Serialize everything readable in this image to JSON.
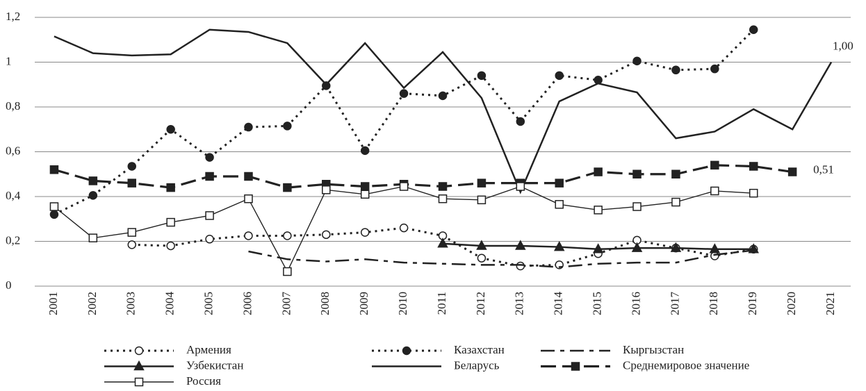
{
  "chart_data": {
    "type": "line",
    "categories": [
      "2001",
      "2002",
      "2003",
      "2004",
      "2005",
      "2006",
      "2007",
      "2008",
      "2009",
      "2010",
      "2011",
      "2012",
      "2013",
      "2014",
      "2015",
      "2016",
      "2017",
      "2018",
      "2019",
      "2020",
      "2021"
    ],
    "ylim": [
      0,
      1.2
    ],
    "yticks": [
      0,
      {
        "value": 0.2,
        "label": "0,2"
      },
      {
        "value": 0.4,
        "label": "0,4"
      },
      {
        "value": 0.6,
        "label": "0,6"
      },
      {
        "value": 0.8,
        "label": "0,8"
      },
      1,
      {
        "value": 1.2,
        "label": "1,2"
      }
    ],
    "grid": true,
    "legend": "bottom",
    "series": [
      {
        "name": "Армения",
        "color": "#222222",
        "dash": "dotted",
        "marker": "open-circle",
        "values": [
          null,
          null,
          0.185,
          0.18,
          0.21,
          0.225,
          0.225,
          0.23,
          0.24,
          0.26,
          0.225,
          0.125,
          0.09,
          0.095,
          0.145,
          0.205,
          0.17,
          0.135,
          0.165,
          null,
          null
        ]
      },
      {
        "name": "Казахстан",
        "color": "#222222",
        "dash": "dotted",
        "marker": "filled-circle",
        "values": [
          0.32,
          0.405,
          0.535,
          0.7,
          0.575,
          0.71,
          0.715,
          0.895,
          0.605,
          0.86,
          0.85,
          0.94,
          0.735,
          0.94,
          0.92,
          1.005,
          0.965,
          0.97,
          1.145,
          null,
          null
        ]
      },
      {
        "name": "Кыргызстан",
        "color": "#222222",
        "dash": "dash-dot",
        "marker": "none",
        "values": [
          null,
          null,
          null,
          null,
          null,
          0.155,
          0.12,
          0.11,
          0.12,
          0.105,
          0.1,
          0.095,
          0.095,
          0.085,
          0.1,
          0.105,
          0.105,
          0.14,
          0.16,
          null,
          null
        ]
      },
      {
        "name": "Узбекистан",
        "color": "#222222",
        "dash": "solid",
        "marker": "triangle",
        "values": [
          null,
          null,
          null,
          null,
          null,
          null,
          null,
          null,
          null,
          null,
          0.19,
          0.18,
          0.18,
          0.175,
          0.165,
          0.17,
          0.17,
          0.165,
          0.165,
          null,
          null
        ]
      },
      {
        "name": "Беларусь",
        "color": "#222222",
        "dash": "solid",
        "marker": "none",
        "values": [
          1.115,
          1.04,
          1.03,
          1.035,
          1.145,
          1.135,
          1.085,
          0.9,
          1.085,
          0.885,
          1.045,
          0.84,
          0.42,
          0.825,
          0.905,
          0.865,
          0.66,
          0.69,
          0.79,
          0.7,
          1.0
        ],
        "value_labels": [
          null,
          null,
          null,
          null,
          null,
          null,
          null,
          null,
          null,
          null,
          null,
          null,
          null,
          null,
          null,
          null,
          null,
          null,
          null,
          null,
          "1,00"
        ]
      },
      {
        "name": "Среднемировое значение",
        "color": "#222222",
        "dash": "long-dash",
        "marker": "filled-square",
        "values": [
          0.52,
          0.47,
          0.46,
          0.44,
          0.49,
          0.49,
          0.44,
          0.455,
          0.445,
          0.455,
          0.445,
          0.46,
          0.46,
          0.46,
          0.51,
          0.5,
          0.5,
          0.54,
          0.535,
          0.51,
          null
        ],
        "value_labels": [
          null,
          null,
          null,
          null,
          null,
          null,
          null,
          null,
          null,
          null,
          null,
          null,
          null,
          null,
          null,
          null,
          null,
          null,
          null,
          "0,51",
          null
        ]
      },
      {
        "name": "Россия",
        "color": "#222222",
        "dash": "thin",
        "marker": "open-square",
        "values": [
          0.355,
          0.215,
          0.24,
          0.285,
          0.315,
          0.39,
          0.065,
          0.43,
          0.41,
          0.445,
          0.39,
          0.385,
          0.445,
          0.365,
          0.34,
          0.355,
          0.375,
          0.425,
          0.415,
          null,
          null
        ]
      }
    ]
  }
}
